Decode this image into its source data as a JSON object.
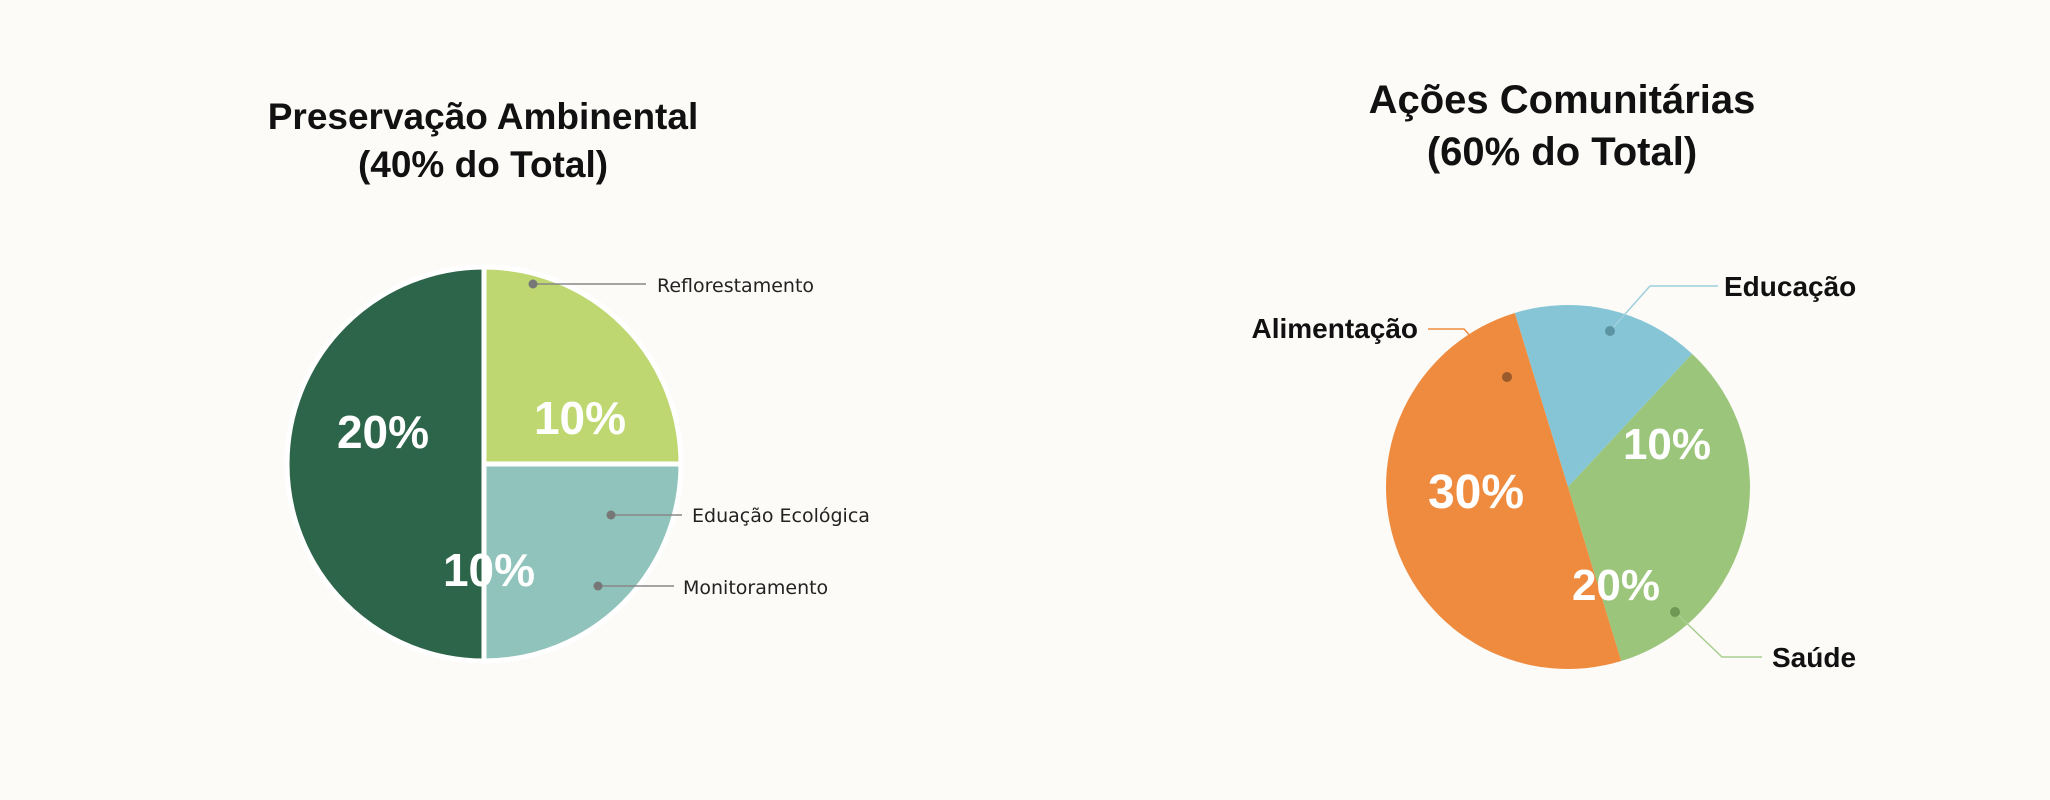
{
  "chart_data": [
    {
      "type": "pie",
      "title_line1": "Preservação Ambinental",
      "title_line2": "(40% do Total)",
      "slices": [
        {
          "name": "Reflorestamento",
          "value": 10,
          "label": "10%",
          "color": "#bfd771"
        },
        {
          "name": "Eduação Ecológica",
          "value": 10,
          "label": "10%",
          "color": "#8fc3bb"
        },
        {
          "name": "Monitoramento",
          "value": 20,
          "label": "20%",
          "color": "#2d654a"
        }
      ],
      "callouts": [
        "Reflorestamento",
        "Eduação Ecológica",
        "Monitoramento"
      ]
    },
    {
      "type": "pie",
      "title_line1": "Ações Comunitárias",
      "title_line2": "(60% do Total)",
      "slices": [
        {
          "name": "Educação",
          "value": 10,
          "label": "10%",
          "color": "#86c5d6"
        },
        {
          "name": "Saúde",
          "value": 20,
          "label": "20%",
          "color": "#9bc57a"
        },
        {
          "name": "Alimentação",
          "value": 30,
          "label": "30%",
          "color": "#ee8b3f"
        }
      ],
      "callouts": [
        "Educação",
        "Saúde",
        "Alimentação"
      ]
    }
  ]
}
